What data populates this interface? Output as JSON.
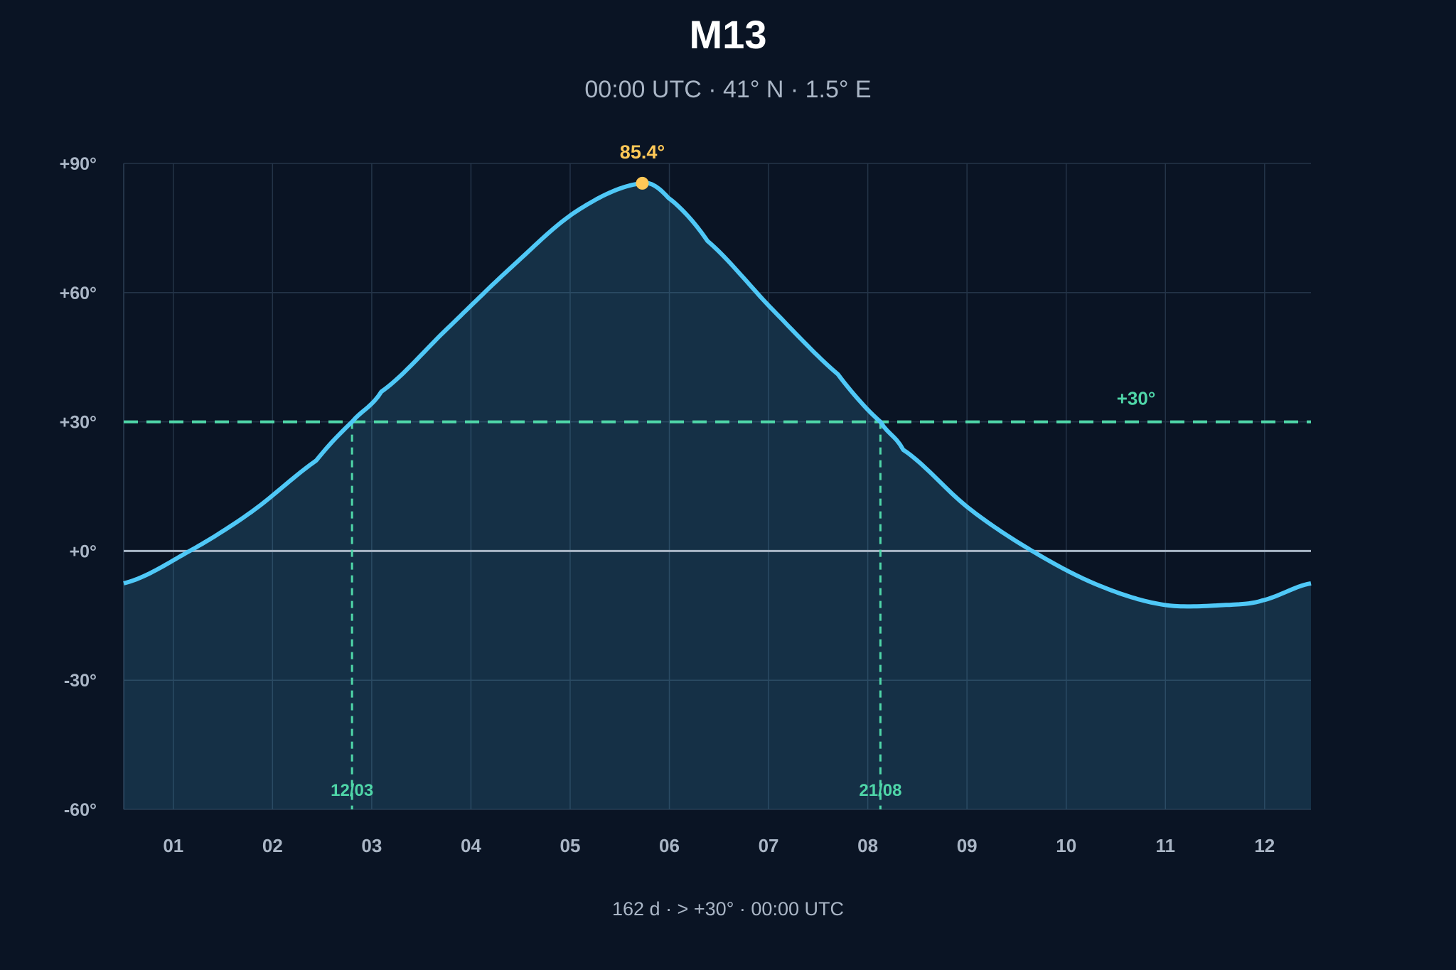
{
  "chart_data": {
    "type": "area",
    "title": "M13",
    "subtitle": "00:00 UTC · 41° N · 1.5° E",
    "footer": "162 d · > +30° · 00:00 UTC",
    "xlabel": "",
    "ylabel": "",
    "x_months": [
      "01",
      "02",
      "03",
      "04",
      "05",
      "06",
      "07",
      "08",
      "09",
      "10",
      "11",
      "12"
    ],
    "ylim": [
      -60,
      90
    ],
    "y_ticks": [
      90,
      60,
      30,
      0,
      -30,
      -60
    ],
    "y_tick_labels": [
      "+90°",
      "+60°",
      "+30°",
      "+0°",
      "-30°",
      "-60°"
    ],
    "grid": true,
    "series": [
      {
        "doy": [
          1,
          20,
          40,
          60,
          71,
          80,
          100,
          120,
          140,
          160,
          168,
          180,
          200,
          220,
          233,
          240,
          260,
          280,
          300,
          320,
          340,
          350,
          365
        ],
        "altitude": [
          -7.5,
          -0.5,
          9,
          21,
          30,
          37,
          51.5,
          66,
          79,
          85.4,
          82,
          72,
          56,
          41,
          30,
          23.5,
          10,
          -0.2,
          -8,
          -12.5,
          -12.5,
          -11.5,
          -7.5
        ]
      }
    ],
    "peak": {
      "label": "85.4°",
      "doy": 160,
      "value": 85.4
    },
    "threshold": {
      "value": 30,
      "label": "+30°"
    },
    "crossings": [
      {
        "label": "12/03",
        "doy": 71
      },
      {
        "label": "21/08",
        "doy": 233
      }
    ],
    "colors": {
      "background": "#0a1424",
      "curve": "#4fc8f7",
      "area_fill": "#15324a",
      "threshold": "#4fd6a8",
      "peak": "#ffc857",
      "horizon": "#a9b6c6",
      "grid": "#243448",
      "text": "#aab6c6"
    }
  }
}
